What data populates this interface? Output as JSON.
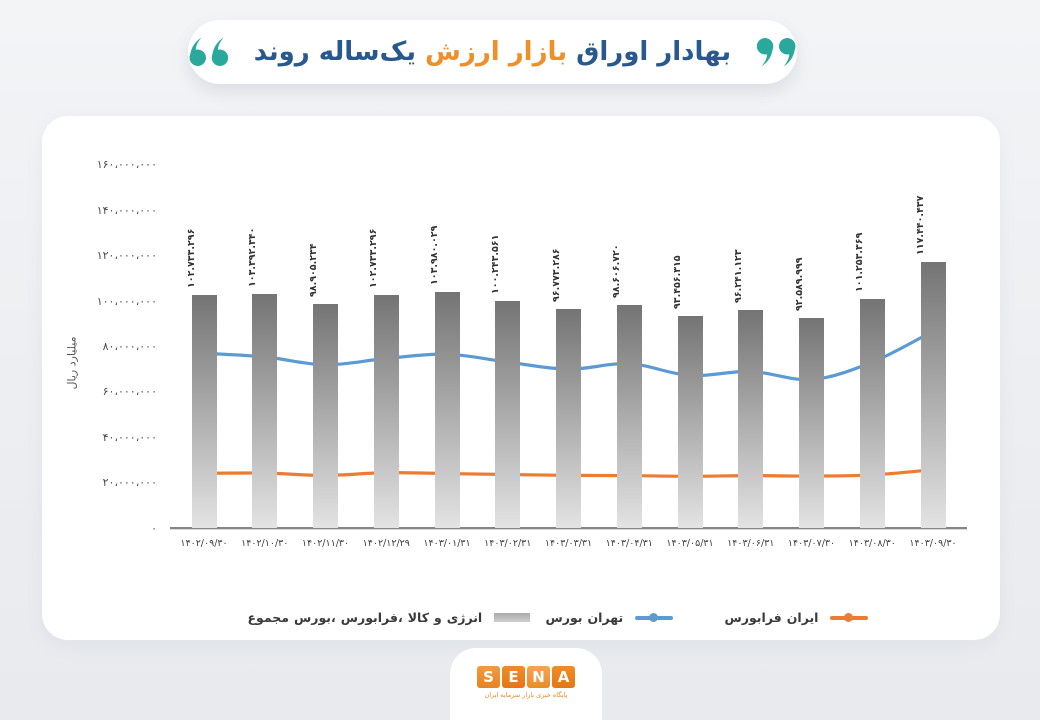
{
  "title": {
    "words": [
      {
        "text": "روند",
        "highlight": false
      },
      {
        "text": "یک‌ساله",
        "highlight": false
      },
      {
        "text": "ارزش",
        "highlight": true
      },
      {
        "text": "بازار",
        "highlight": true
      },
      {
        "text": "اوراق",
        "highlight": false
      },
      {
        "text": "بهادار",
        "highlight": false
      }
    ],
    "text_color": "#27598f",
    "highlight_color": "#ef8f2c",
    "quote_color": "#2aa89c"
  },
  "chart_data": {
    "type": "bar+line",
    "ylabel": "میلیارد ریال",
    "ylim": [
      0,
      160000000
    ],
    "ytick_step": 20000000,
    "grid": false,
    "categories": [
      "۱۴۰۲/۰۹/۳۰",
      "۱۴۰۲/۱۰/۳۰",
      "۱۴۰۲/۱۱/۳۰",
      "۱۴۰۲/۱۲/۲۹",
      "۱۴۰۳/۰۱/۳۱",
      "۱۴۰۳/۰۲/۳۱",
      "۱۴۰۳/۰۳/۳۱",
      "۱۴۰۳/۰۴/۳۱",
      "۱۴۰۳/۰۵/۳۱",
      "۱۴۰۳/۰۶/۳۱",
      "۱۴۰۳/۰۷/۳۰",
      "۱۴۰۳/۰۸/۳۰",
      "۱۴۰۳/۰۹/۳۰"
    ],
    "series": [
      {
        "name": "مجموع بورس، فرابورس، کالا و انرژی",
        "type": "bar",
        "values": [
          102733296,
          103392340,
          98905234,
          102733296,
          103980029,
          100243561,
          96773286,
          98606720,
          93456315,
          96241123,
          92589999,
          101253369,
          117440437
        ],
        "value_labels": [
          "۱۰۲.۷۳۳.۲۹۶",
          "۱۰۳.۳۹۲.۳۴۰",
          "۹۸.۹۰۵.۲۳۴",
          "۱۰۲.۷۳۳.۲۹۶",
          "۱۰۳.۹۸۰.۰۲۹",
          "۱۰۰.۲۴۳.۵۶۱",
          "۹۶.۷۷۳.۲۸۶",
          "۹۸.۶۰۶.۷۲۰",
          "۹۳.۴۵۶.۳۱۵",
          "۹۶.۲۴۱.۱۲۳",
          "۹۲.۵۸۹.۹۹۹",
          "۱۰۱.۲۵۳.۳۶۹",
          "۱۱۷.۴۴۰.۴۳۷"
        ],
        "color_top": "#747474",
        "color_bottom": "#e3e3e3"
      },
      {
        "name": "بورس تهران",
        "type": "line",
        "color": "#5b9bd5",
        "values": [
          77200000,
          75600000,
          72100000,
          74900000,
          76800000,
          73300000,
          70200000,
          72600000,
          67400000,
          69200000,
          65600000,
          73300000,
          86900000
        ]
      },
      {
        "name": "فرابورس ایران",
        "type": "line",
        "color": "#ec7c30",
        "values": [
          24300000,
          24400000,
          23400000,
          24600000,
          24200000,
          23800000,
          23400000,
          23300000,
          23000000,
          23300000,
          23100000,
          23600000,
          25900000
        ]
      }
    ]
  },
  "legend": {
    "items": [
      {
        "label": "مجموع بورس، فرابورس، کالا و انرژی",
        "swatch": "bar"
      },
      {
        "label": "بورس تهران",
        "swatch": "line",
        "color": "#5b9bd5"
      },
      {
        "label": "فرابورس ایران",
        "swatch": "line",
        "color": "#ec7c30"
      }
    ]
  },
  "logo": {
    "letters": [
      "S",
      "E",
      "N",
      "A"
    ],
    "tagline": "پایگاه خبری بازار سرمایه ایران",
    "color": "#e8821f"
  }
}
